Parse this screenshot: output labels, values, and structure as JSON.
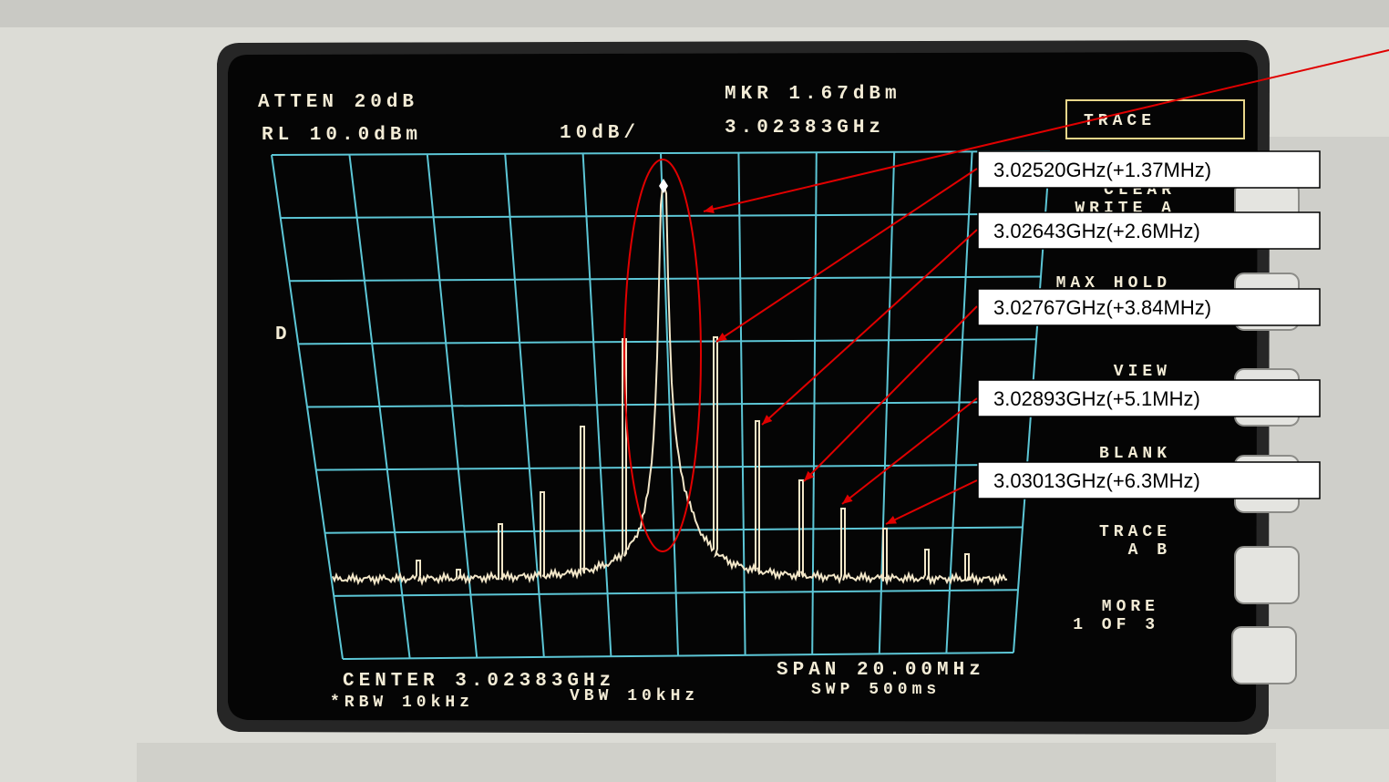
{
  "screen": {
    "atten": "ATTEN 20dB",
    "ref_level": "RL 10.0dBm",
    "scale": "10dB/",
    "marker": "MKR 1.67dBm",
    "marker_freq": "3.02383GHz",
    "detector": "D",
    "center": "CENTER 3.02383GHz",
    "span": "SPAN 20.00MHz",
    "rbw": "*RBW 10kHz",
    "vbw": "VBW 10kHz",
    "sweep": "SWP 500ms"
  },
  "softkeys": [
    {
      "lines": [
        "TRACE"
      ]
    },
    {
      "lines": [
        "CLEAR",
        "WRITE A"
      ]
    },
    {
      "lines": [
        "MAX HOLD"
      ]
    },
    {
      "lines": [
        "VIEW"
      ]
    },
    {
      "lines": [
        "BLANK"
      ]
    },
    {
      "lines": [
        "TRACE",
        "A B"
      ]
    },
    {
      "lines": [
        "MORE",
        "1 OF 3"
      ]
    }
  ],
  "annotations": [
    "3.02520GHz(+1.37MHz)",
    "3.02643GHz(+2.6MHz)",
    "3.02767GHz(+3.84MHz)",
    "3.02893GHz(+5.1MHz)",
    "3.03013GHz(+6.3MHz)"
  ]
}
